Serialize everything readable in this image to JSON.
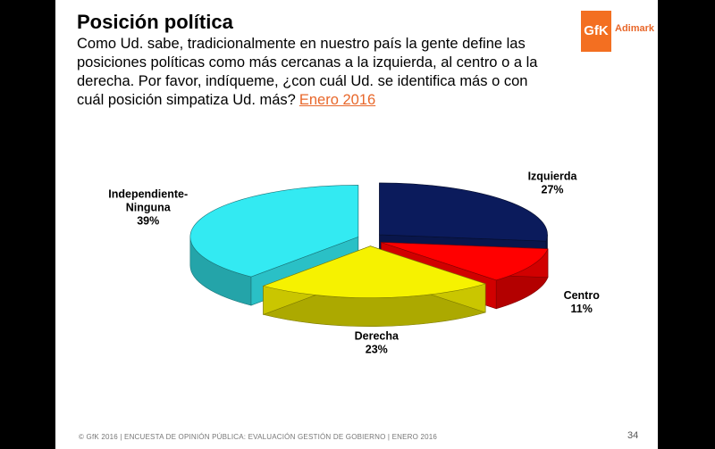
{
  "title": "Posición política",
  "question": "Como Ud. sabe, tradicionalmente en nuestro país la gente define las posiciones políticas como más cercanas a la izquierda, al centro o a la derecha. Por favor, indíqueme, ¿con cuál Ud. se identifica más o con cuál posición simpatiza Ud. más?",
  "date_link": "Enero 2016",
  "logo": {
    "mark": "GfK",
    "text": "Adimark"
  },
  "footer": "© GfK 2016 | ENCUESTA DE OPINIÓN PÚBLICA: EVALUACIÓN GESTIÓN DE GOBIERNO | ENERO 2016",
  "page_number": "34",
  "chart_data": {
    "type": "pie",
    "style": "3d-exploded",
    "slices": [
      {
        "label": "Izquierda",
        "value": 27,
        "display": "27%",
        "color": "#0b1b5c"
      },
      {
        "label": "Centro",
        "value": 11,
        "display": "11%",
        "color": "#ff0000"
      },
      {
        "label": "Derecha",
        "value": 23,
        "display": "23%",
        "color": "#f6f200"
      },
      {
        "label": "Independiente-Ninguna",
        "value": 39,
        "display": "39%",
        "color": "#33eaf2"
      }
    ]
  }
}
